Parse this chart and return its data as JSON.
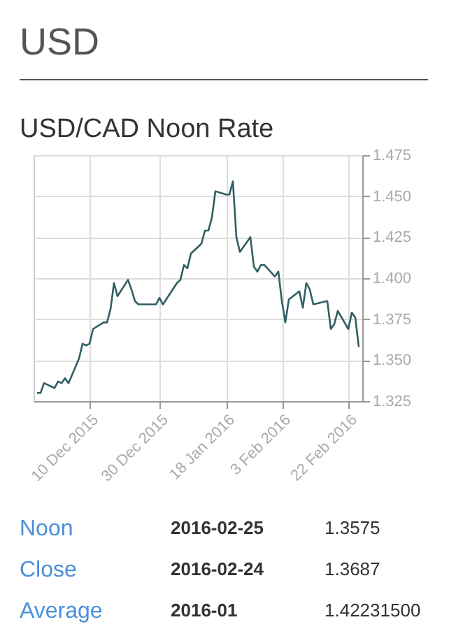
{
  "chart_data": {
    "type": "line",
    "title": "USD",
    "subtitle": "USD/CAD Noon Rate",
    "x": [
      "2015-11-25",
      "2015-11-26",
      "2015-11-27",
      "2015-11-30",
      "2015-12-01",
      "2015-12-02",
      "2015-12-03",
      "2015-12-04",
      "2015-12-07",
      "2015-12-08",
      "2015-12-09",
      "2015-12-10",
      "2015-12-11",
      "2015-12-14",
      "2015-12-15",
      "2015-12-16",
      "2015-12-17",
      "2015-12-18",
      "2015-12-21",
      "2015-12-22",
      "2015-12-23",
      "2015-12-24",
      "2015-12-29",
      "2015-12-30",
      "2015-12-31",
      "2016-01-04",
      "2016-01-05",
      "2016-01-06",
      "2016-01-07",
      "2016-01-08",
      "2016-01-11",
      "2016-01-12",
      "2016-01-13",
      "2016-01-14",
      "2016-01-15",
      "2016-01-18",
      "2016-01-19",
      "2016-01-20",
      "2016-01-21",
      "2016-01-22",
      "2016-01-25",
      "2016-01-26",
      "2016-01-27",
      "2016-01-28",
      "2016-01-29",
      "2016-02-01",
      "2016-02-02",
      "2016-02-03",
      "2016-02-04",
      "2016-02-05",
      "2016-02-08",
      "2016-02-09",
      "2016-02-10",
      "2016-02-11",
      "2016-02-12",
      "2016-02-16",
      "2016-02-17",
      "2016-02-18",
      "2016-02-19",
      "2016-02-22",
      "2016-02-23",
      "2016-02-24",
      "2016-02-25"
    ],
    "series": [
      {
        "color": "#2f5f63",
        "values": [
          1.33,
          1.33,
          1.336,
          1.333,
          1.337,
          1.336,
          1.339,
          1.336,
          1.351,
          1.36,
          1.359,
          1.36,
          1.369,
          1.373,
          1.373,
          1.381,
          1.397,
          1.389,
          1.399,
          1.393,
          1.386,
          1.384,
          1.384,
          1.388,
          1.384,
          1.397,
          1.399,
          1.408,
          1.406,
          1.415,
          1.421,
          1.429,
          1.429,
          1.437,
          1.453,
          1.451,
          1.451,
          1.459,
          1.425,
          1.416,
          1.425,
          1.407,
          1.404,
          1.408,
          1.408,
          1.401,
          1.404,
          1.386,
          1.373,
          1.387,
          1.392,
          1.382,
          1.397,
          1.393,
          1.384,
          1.386,
          1.369,
          1.372,
          1.38,
          1.369,
          1.379,
          1.376,
          1.358
        ]
      }
    ],
    "xlim": [
      "2015-11-24",
      "2016-02-26"
    ],
    "xticks": [
      {
        "value": "2015-12-10",
        "label": "10 Dec 2015"
      },
      {
        "value": "2015-12-30",
        "label": "30 Dec 2015"
      },
      {
        "value": "2016-01-18",
        "label": "18 Jan 2016"
      },
      {
        "value": "2016-02-03",
        "label": "3 Feb 2016"
      },
      {
        "value": "2016-02-22",
        "label": "22 Feb 2016"
      }
    ],
    "ylim": [
      1.325,
      1.475
    ],
    "yticks": [
      1.325,
      {
        "value": 1.35,
        "label": "1.350"
      },
      1.375,
      {
        "value": 1.4,
        "label": "1.400"
      },
      1.425,
      {
        "value": 1.45,
        "label": "1.450"
      },
      1.475
    ],
    "grid": true,
    "annotations": [
      "Noon",
      "2016-02-25",
      "1.3575",
      "Close",
      "2016-02-24",
      "1.3687",
      "Average",
      "2016-01",
      "1.42231500"
    ]
  }
}
